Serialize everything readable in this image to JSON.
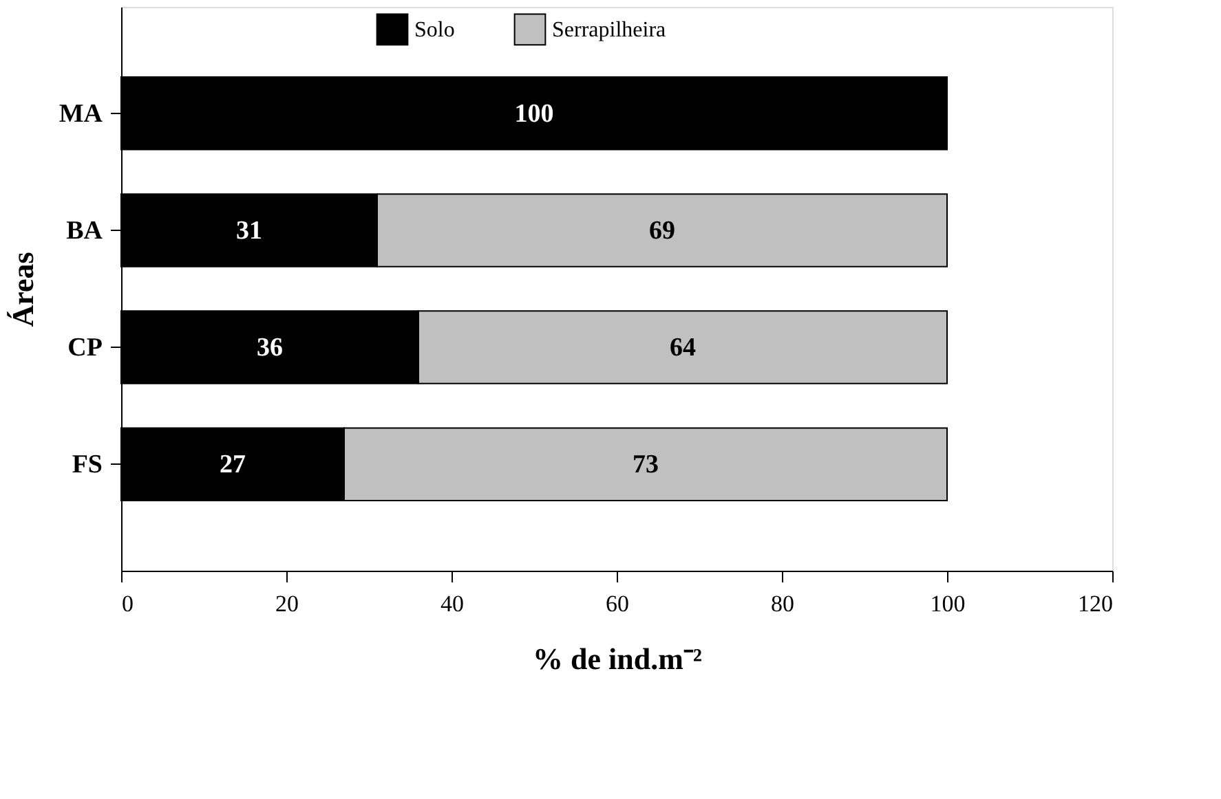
{
  "chart_data": {
    "type": "bar",
    "orientation": "horizontal",
    "stacked": true,
    "categories": [
      "MA",
      "BA",
      "CP",
      "FS"
    ],
    "series": [
      {
        "name": "Solo",
        "color": "#000000",
        "values": [
          100,
          31,
          36,
          27
        ]
      },
      {
        "name": "Serrapilheira",
        "color": "#c0c0c0",
        "values": [
          null,
          69,
          64,
          73
        ]
      }
    ],
    "xlim": [
      0,
      120
    ],
    "xticks": [
      0,
      20,
      40,
      60,
      80,
      100,
      120
    ],
    "xlabel": "% de ind.m⁻²",
    "ylabel": "Áreas",
    "data_labels": true,
    "legend": "top",
    "grid": false
  }
}
